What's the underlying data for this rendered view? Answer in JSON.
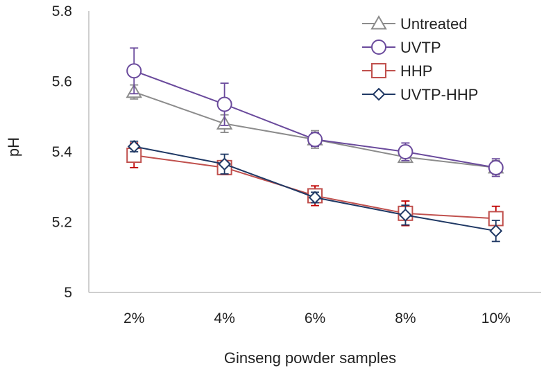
{
  "chart_data": {
    "type": "line",
    "title": "",
    "xlabel": "Ginseng powder samples",
    "ylabel": "pH",
    "categories": [
      "2%",
      "4%",
      "6%",
      "8%",
      "10%"
    ],
    "ylim": [
      5,
      5.8
    ],
    "yticks": [
      5,
      5.2,
      5.4,
      5.6,
      5.8
    ],
    "ytick_labels": [
      "5",
      "5.2",
      "5.4",
      "5.6",
      "5.8"
    ],
    "grid": false,
    "legend_position": "top-right",
    "series": [
      {
        "name": "Untreated",
        "marker": "triangle",
        "color": "#8c8c8c",
        "values": [
          5.57,
          5.48,
          5.435,
          5.385,
          5.355
        ],
        "errors": [
          0.02,
          0.025,
          0.025,
          0.015,
          0.02
        ]
      },
      {
        "name": "UVTP",
        "marker": "circle",
        "color": "#6a4a9c",
        "values": [
          5.63,
          5.535,
          5.435,
          5.4,
          5.355
        ],
        "errors": [
          0.065,
          0.06,
          0.02,
          0.025,
          0.025
        ]
      },
      {
        "name": "HHP",
        "marker": "square",
        "color": "#c0504d",
        "errors_color": "#c00000",
        "values": [
          5.39,
          5.355,
          5.275,
          5.225,
          5.21
        ],
        "errors": [
          0.035,
          0.02,
          0.028,
          0.035,
          0.035
        ]
      },
      {
        "name": "UVTP-HHP",
        "marker": "diamond",
        "color": "#1f3864",
        "values": [
          5.415,
          5.365,
          5.27,
          5.22,
          5.175
        ],
        "errors": [
          0.015,
          0.028,
          0.015,
          0.028,
          0.03
        ]
      }
    ]
  }
}
